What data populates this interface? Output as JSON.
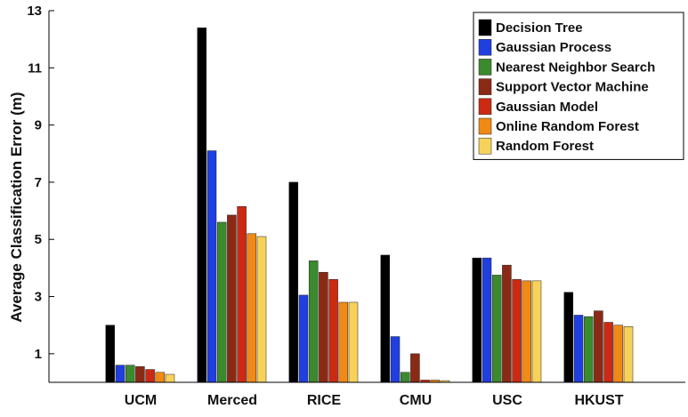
{
  "chart_data": {
    "type": "bar",
    "title": "",
    "xlabel": "",
    "ylabel": "Average Classification Error (m)",
    "ylim": [
      0,
      13
    ],
    "yticks": [
      1,
      3,
      5,
      7,
      9,
      11,
      13
    ],
    "grid": false,
    "legend_position": "top-right",
    "categories": [
      "UCM",
      "Merced",
      "RICE",
      "CMU",
      "USC",
      "HKUST"
    ],
    "series": [
      {
        "name": "Decision Tree",
        "color": "#000000",
        "values": [
          2.0,
          12.4,
          7.0,
          4.45,
          4.35,
          3.15
        ]
      },
      {
        "name": "Gaussian Process",
        "color": "#1f3fe0",
        "values": [
          0.6,
          8.1,
          3.05,
          1.6,
          4.35,
          2.35
        ]
      },
      {
        "name": "Nearest Neighbor Search",
        "color": "#3c8a2e",
        "values": [
          0.6,
          5.6,
          4.25,
          0.35,
          3.75,
          2.3
        ]
      },
      {
        "name": "Support Vector Machine",
        "color": "#8b2a14",
        "values": [
          0.55,
          5.85,
          3.85,
          1.0,
          4.1,
          2.5
        ]
      },
      {
        "name": "Gaussian Model",
        "color": "#cc2a12",
        "values": [
          0.45,
          6.15,
          3.6,
          0.08,
          3.6,
          2.1
        ]
      },
      {
        "name": "Online Random Forest",
        "color": "#f08a14",
        "values": [
          0.35,
          5.2,
          2.8,
          0.08,
          3.55,
          2.0
        ]
      },
      {
        "name": "Random Forest",
        "color": "#f7d25a",
        "values": [
          0.28,
          5.1,
          2.8,
          0.06,
          3.55,
          1.95
        ]
      }
    ]
  }
}
